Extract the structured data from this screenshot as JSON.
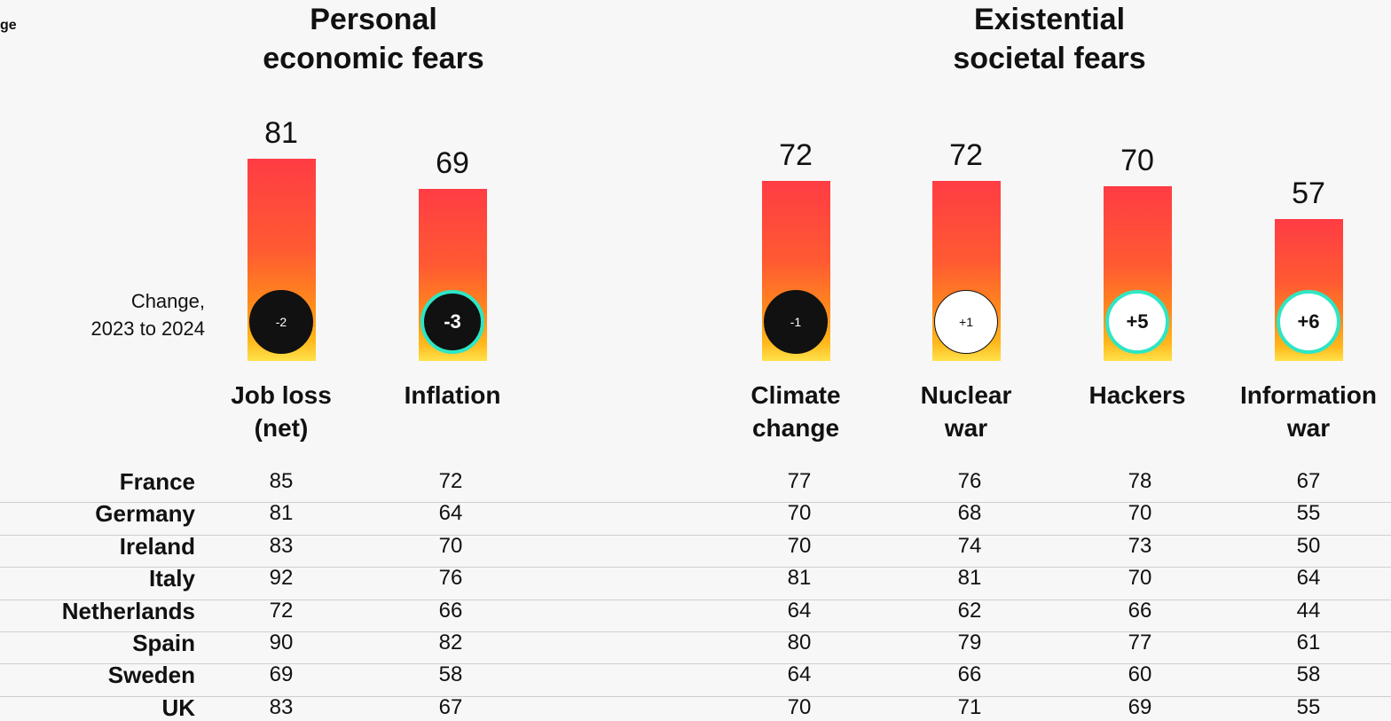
{
  "chart_data": {
    "type": "bar",
    "corner_text": "ge",
    "groups": [
      {
        "title": "Personal\neconomic fears"
      },
      {
        "title": "Existential\nsocietal fears"
      }
    ],
    "categories": [
      "Job loss\n(net)",
      "Inflation",
      "Climate\nchange",
      "Nuclear\nwar",
      "Hackers",
      "Information\nwar"
    ],
    "values": [
      81,
      69,
      72,
      72,
      70,
      57
    ],
    "ylim": [
      0,
      100
    ],
    "change_title": "Change,\n2023 to 2024",
    "changes": [
      -2,
      -3,
      -1,
      1,
      5,
      6
    ],
    "change_labels": [
      "-2",
      "-3",
      "-1",
      "+1",
      "+5",
      "+6"
    ],
    "table_rows": [
      {
        "country": "France",
        "values": [
          85,
          72,
          77,
          76,
          78,
          67
        ]
      },
      {
        "country": "Germany",
        "values": [
          81,
          64,
          70,
          68,
          70,
          55
        ]
      },
      {
        "country": "Ireland",
        "values": [
          83,
          70,
          70,
          74,
          73,
          50
        ]
      },
      {
        "country": "Italy",
        "values": [
          92,
          76,
          81,
          81,
          70,
          64
        ]
      },
      {
        "country": "Netherlands",
        "values": [
          72,
          66,
          64,
          62,
          66,
          44
        ]
      },
      {
        "country": "Spain",
        "values": [
          90,
          82,
          80,
          79,
          77,
          61
        ]
      },
      {
        "country": "Sweden",
        "values": [
          69,
          58,
          64,
          66,
          60,
          58
        ]
      },
      {
        "country": "UK",
        "values": [
          83,
          67,
          70,
          71,
          69,
          55
        ]
      }
    ]
  }
}
